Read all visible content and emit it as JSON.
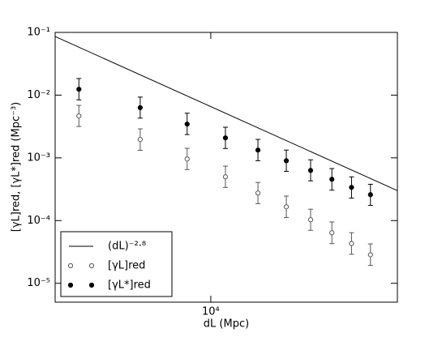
{
  "chart_data": {
    "type": "scatter",
    "xlabel": "dL (Mpc)",
    "ylabel": "[γL]red, [γL*]red (Mpc⁻³)",
    "xscale": "log",
    "yscale": "log",
    "xlim": [
      4000,
      30000
    ],
    "ylim": [
      5e-06,
      0.1
    ],
    "xticks": [
      {
        "value": 10000,
        "label": "10⁴"
      }
    ],
    "yticks": [
      {
        "value": 1e-05,
        "label": "10⁻⁵"
      },
      {
        "value": 0.0001,
        "label": "10⁻⁴"
      },
      {
        "value": 0.001,
        "label": "10⁻³"
      },
      {
        "value": 0.01,
        "label": "10⁻²"
      },
      {
        "value": 0.1,
        "label": "10⁻¹"
      }
    ],
    "legend": "lower left",
    "series": [
      {
        "name": "(dL)⁻²·⁸",
        "kind": "line",
        "color": "#000000",
        "x": [
          4000,
          30000
        ],
        "values": [
          0.086,
          0.0003
        ]
      },
      {
        "name": "[γL]red",
        "kind": "points",
        "marker": "open",
        "color": "#555555",
        "x": [
          4600,
          6600,
          8700,
          10900,
          13200,
          15600,
          18000,
          20400,
          22900,
          25600
        ],
        "values": [
          0.00466,
          0.00196,
          0.00096,
          0.000498,
          0.000275,
          0.000166,
          0.000103,
          6.4e-05,
          4.3e-05,
          2.85e-05
        ],
        "err_minus": [
          0.0015,
          0.00064,
          0.00031,
          0.00016,
          8.9e-05,
          5.4e-05,
          3.3e-05,
          2.1e-05,
          1.4e-05,
          9.2e-06
        ],
        "err_plus": [
          0.0022,
          0.00094,
          0.00046,
          0.00024,
          0.00013,
          8e-05,
          4.9e-05,
          3.1e-05,
          2.1e-05,
          1.4e-05
        ]
      },
      {
        "name": "[γL*]red",
        "kind": "points",
        "marker": "filled",
        "color": "#000000",
        "x": [
          4600,
          6600,
          8700,
          10900,
          13200,
          15600,
          18000,
          20400,
          22900,
          25600
        ],
        "values": [
          0.0124,
          0.0063,
          0.00345,
          0.00208,
          0.00133,
          0.0009,
          0.00063,
          0.000455,
          0.000338,
          0.000259
        ],
        "err_minus": [
          0.004,
          0.002,
          0.0011,
          0.00067,
          0.00043,
          0.00029,
          0.0002,
          0.00015,
          0.00011,
          8.4e-05
        ],
        "err_plus": [
          0.006,
          0.003,
          0.0017,
          0.001,
          0.00064,
          0.00043,
          0.0003,
          0.00022,
          0.00016,
          0.00012
        ]
      }
    ]
  }
}
